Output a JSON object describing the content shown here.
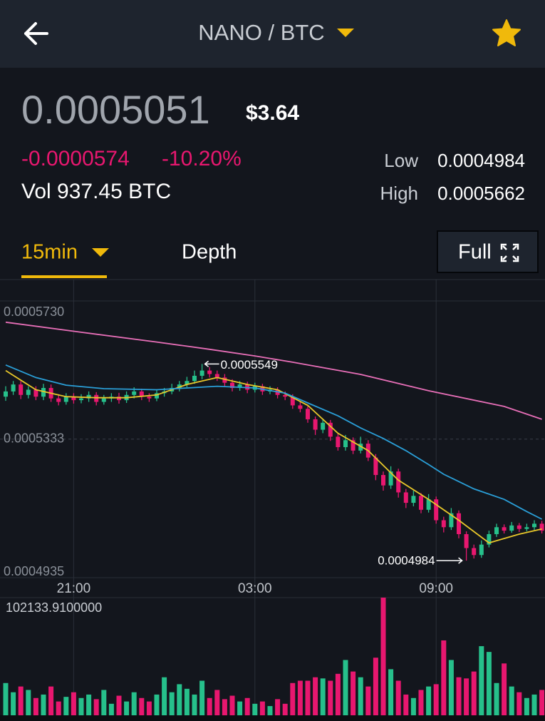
{
  "header": {
    "title": "NANO / BTC"
  },
  "ticker": {
    "price": "0.0005051",
    "usd": "$3.64",
    "change": "-0.0000574",
    "change_pct": "-10.20%",
    "volume": "Vol 937.45 BTC",
    "low_label": "Low",
    "low": "0.0004984",
    "high_label": "High",
    "high": "0.0005662"
  },
  "tabs": {
    "interval": "15min",
    "depth": "Depth",
    "full": "Full"
  },
  "chart_data": {
    "type": "candlestick",
    "categories": [
      null,
      null,
      null,
      null,
      null,
      null,
      null,
      null,
      null,
      "21:00",
      null,
      null,
      null,
      null,
      null,
      null,
      null,
      null,
      null,
      null,
      null,
      null,
      null,
      null,
      null,
      null,
      null,
      null,
      null,
      null,
      null,
      null,
      null,
      "03:00",
      null,
      null,
      null,
      null,
      null,
      null,
      null,
      null,
      null,
      null,
      null,
      null,
      null,
      null,
      null,
      null,
      null,
      null,
      null,
      null,
      null,
      null,
      null,
      "09:00",
      null,
      null,
      null,
      null,
      null,
      null,
      null,
      null,
      null,
      null,
      null,
      null,
      null,
      null
    ],
    "open": [
      0.0005455,
      0.000547,
      0.000549,
      0.000546,
      0.0005475,
      0.0005455,
      0.000548,
      0.000545,
      0.000544,
      0.0005455,
      0.0005445,
      0.000545,
      0.000546,
      0.000544,
      0.000545,
      0.0005455,
      0.0005445,
      0.000546,
      0.000547,
      0.0005455,
      0.000545,
      0.0005465,
      0.000547,
      0.000548,
      0.000549,
      0.00055,
      0.0005515,
      0.000553,
      0.000552,
      0.000551,
      0.0005495,
      0.000548,
      0.000549,
      0.0005475,
      0.0005485,
      0.000547,
      0.0005475,
      0.000546,
      0.0005455,
      0.000543,
      0.000542,
      0.000539,
      0.000536,
      0.000538,
      0.000534,
      0.000531,
      0.000533,
      0.00053,
      0.000532,
      0.000528,
      0.000523,
      0.00052,
      0.000524,
      0.000518,
      0.000515,
      0.000517,
      0.000513,
      0.000516,
      0.00051,
      0.000508,
      0.000512,
      0.000506,
      0.000502,
      0.0005,
      0.000503,
      0.000506,
      0.000508,
      0.000507,
      0.0005085,
      0.0005075,
      0.000508,
      0.000509
    ],
    "high": [
      0.0005485,
      0.00055,
      0.00055,
      0.0005485,
      0.0005485,
      0.0005492,
      0.000549,
      0.0005462,
      0.0005465,
      0.0005465,
      0.0005462,
      0.000547,
      0.0005468,
      0.000546,
      0.0005465,
      0.0005466,
      0.000547,
      0.0005482,
      0.0005478,
      0.0005465,
      0.0005475,
      0.000548,
      0.0005492,
      0.00055,
      0.0005512,
      0.000553,
      0.0005549,
      0.000554,
      0.000553,
      0.000552,
      0.0005505,
      0.00055,
      0.0005498,
      0.0005495,
      0.0005492,
      0.0005485,
      0.0005482,
      0.000547,
      0.0005462,
      0.000544,
      0.0005428,
      0.0005398,
      0.0005392,
      0.0005388,
      0.000535,
      0.0005345,
      0.0005338,
      0.000534,
      0.000533,
      0.000529,
      0.000524,
      0.0005255,
      0.0005248,
      0.000519,
      0.0005185,
      0.0005178,
      0.0005175,
      0.0005168,
      0.000511,
      0.0005135,
      0.0005128,
      0.0005068,
      0.000503,
      0.0005042,
      0.000507,
      0.000509,
      0.0005088,
      0.0005095,
      0.0005092,
      0.000509,
      0.00051,
      0.0005098
    ],
    "low": [
      0.0005443,
      0.000546,
      0.0005448,
      0.000545,
      0.0005445,
      0.0005445,
      0.000544,
      0.000543,
      0.0005432,
      0.0005435,
      0.0005436,
      0.000544,
      0.000543,
      0.0005432,
      0.000544,
      0.0005435,
      0.0005437,
      0.000545,
      0.0005445,
      0.000544,
      0.0005442,
      0.0005455,
      0.0005462,
      0.000547,
      0.0005482,
      0.0005492,
      0.0005505,
      0.000551,
      0.00055,
      0.0005485,
      0.000547,
      0.0005472,
      0.0005465,
      0.0005467,
      0.000546,
      0.0005462,
      0.000545,
      0.0005445,
      0.000542,
      0.000541,
      0.000538,
      0.0005345,
      0.000535,
      0.0005328,
      0.00053,
      0.00053,
      0.000529,
      0.0005292,
      0.000527,
      0.0005215,
      0.0005185,
      0.000519,
      0.0005165,
      0.0005135,
      0.000514,
      0.000512,
      0.0005122,
      0.000509,
      0.0005065,
      0.0005072,
      0.0005048,
      0.0004984,
      0.000499,
      0.0004992,
      0.0005022,
      0.0005052,
      0.0005062,
      0.0005064,
      0.0005066,
      0.0005068,
      0.0005072,
      0.0005062
    ],
    "close": [
      0.000547,
      0.000549,
      0.000546,
      0.0005475,
      0.0005455,
      0.000548,
      0.000545,
      0.000544,
      0.0005455,
      0.0005445,
      0.000545,
      0.000546,
      0.000544,
      0.000545,
      0.0005455,
      0.0005445,
      0.000546,
      0.000547,
      0.0005455,
      0.000545,
      0.0005465,
      0.000547,
      0.000548,
      0.000549,
      0.00055,
      0.0005515,
      0.000553,
      0.000552,
      0.000551,
      0.0005495,
      0.000548,
      0.000549,
      0.0005475,
      0.0005485,
      0.000547,
      0.0005475,
      0.000546,
      0.0005455,
      0.000543,
      0.000542,
      0.000539,
      0.000536,
      0.000538,
      0.000534,
      0.000531,
      0.000533,
      0.00053,
      0.000532,
      0.000528,
      0.000523,
      0.00052,
      0.000524,
      0.000518,
      0.000515,
      0.000517,
      0.000513,
      0.000516,
      0.00051,
      0.000508,
      0.000512,
      0.000506,
      0.000502,
      0.0005,
      0.000503,
      0.000506,
      0.000508,
      0.000507,
      0.0005085,
      0.0005075,
      0.000508,
      0.000509,
      0.000507
    ],
    "volume": [
      28000,
      20000,
      25000,
      22000,
      15000,
      18000,
      25000,
      12000,
      16000,
      20000,
      15000,
      18000,
      14000,
      22000,
      10000,
      17000,
      12000,
      20000,
      15000,
      12000,
      18000,
      33000,
      20000,
      27000,
      23000,
      18000,
      30000,
      15000,
      22000,
      14000,
      17000,
      12000,
      15000,
      10000,
      12000,
      8000,
      14000,
      10000,
      28000,
      30000,
      30000,
      33000,
      32000,
      30000,
      36000,
      48000,
      38000,
      33000,
      25000,
      50000,
      102133.91,
      40000,
      30000,
      18000,
      15000,
      22000,
      25000,
      27000,
      65000,
      48000,
      33000,
      32000,
      38000,
      60000,
      55000,
      28000,
      45000,
      25000,
      20000,
      15000,
      18000,
      22000
    ],
    "up_color": "#26c08b",
    "down_color": "#e8176f",
    "ylim": [
      0.0004935,
      0.000573
    ],
    "yticks": [
      {
        "value": 0.000573,
        "label": "0.0005730"
      },
      0.0005333,
      0.0004935
    ],
    "volume_ylim": [
      0,
      102133.91
    ],
    "volume_yticks": [
      {
        "value": 102133.91,
        "label": "102133.9100000"
      }
    ],
    "ma_lines": [
      {
        "color": "#e8c72a",
        "x": [
          0,
          4,
          8,
          12,
          16,
          20,
          24,
          28,
          32,
          36,
          40,
          44,
          48,
          52,
          56,
          60,
          64,
          68,
          71
        ],
        "values": [
          0.000553,
          0.0005475,
          0.0005455,
          0.0005452,
          0.0005452,
          0.000546,
          0.000549,
          0.000551,
          0.000549,
          0.0005475,
          0.000543,
          0.000535,
          0.00053,
          0.0005215,
          0.000516,
          0.00051,
          0.0005035,
          0.000506,
          0.0005075
        ]
      },
      {
        "color": "#2a9fd8",
        "x": [
          0,
          4,
          8,
          13,
          20,
          28,
          33,
          37,
          40,
          44,
          47,
          50,
          53,
          56,
          58,
          62,
          66,
          69,
          71
        ],
        "values": [
          0.0005546,
          0.000551,
          0.0005488,
          0.0005478,
          0.0005475,
          0.0005485,
          0.000548,
          0.0005465,
          0.0005437,
          0.00054,
          0.0005365,
          0.0005335,
          0.00053,
          0.000526,
          0.0005232,
          0.000519,
          0.000516,
          0.0005125,
          0.0005103
        ]
      },
      {
        "color": "#e86fb8",
        "x": [
          0,
          10,
          20,
          27,
          33,
          38,
          47,
          56,
          66,
          71
        ],
        "values": [
          0.0005669,
          0.000564,
          0.0005612,
          0.0005591,
          0.0005572,
          0.0005554,
          0.0005519,
          0.0005472,
          0.0005427,
          0.000539
        ]
      }
    ]
  }
}
